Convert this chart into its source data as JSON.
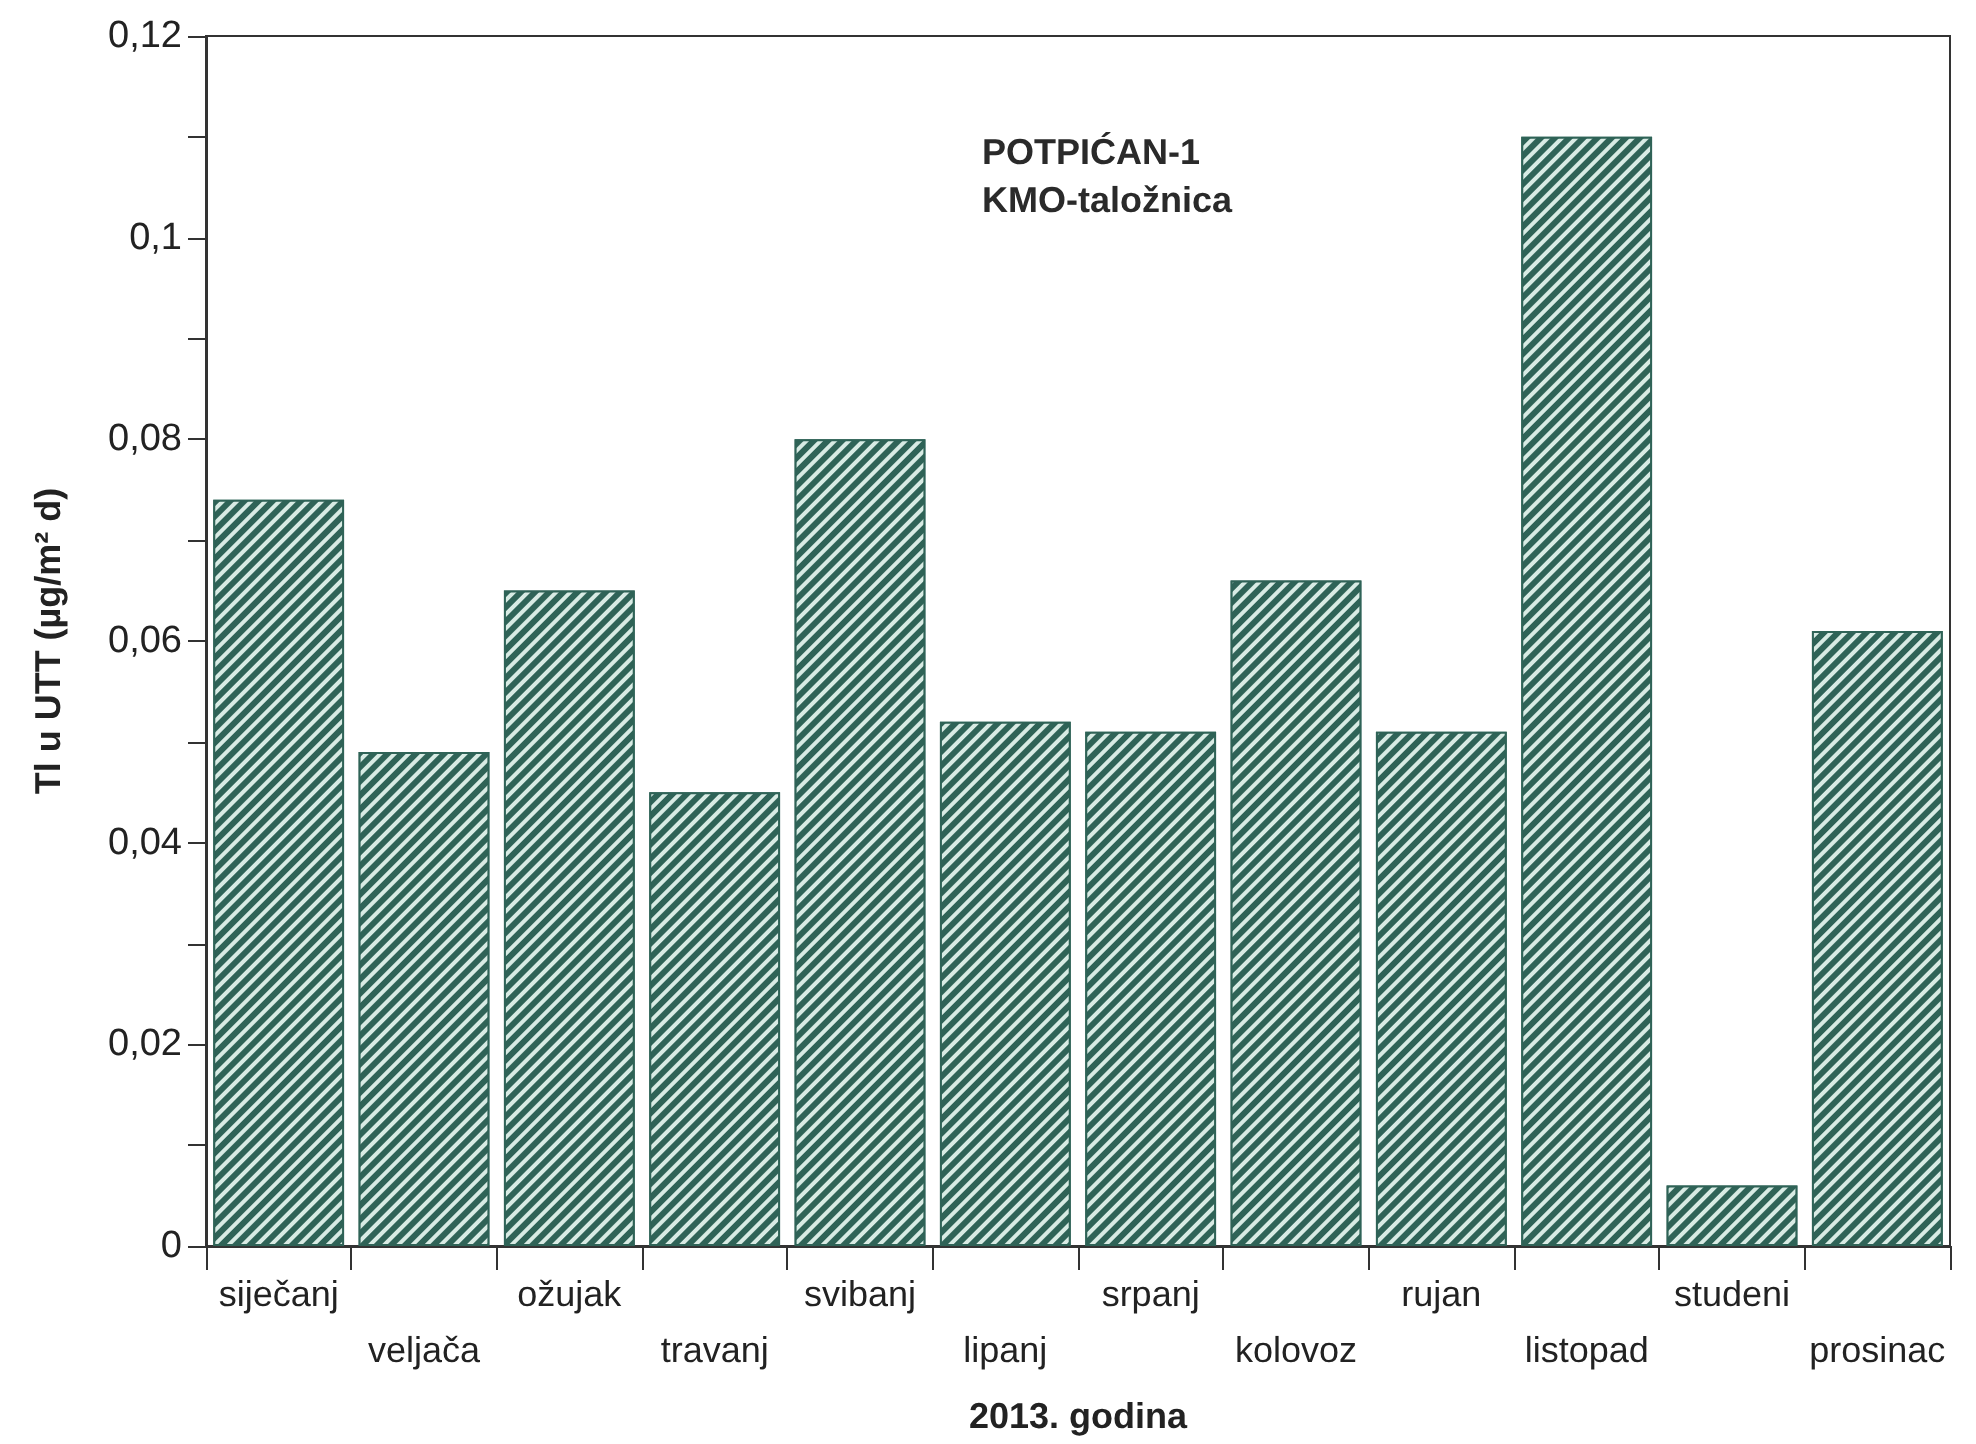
{
  "chart_data": {
    "type": "bar",
    "title": "POTPIĆAN-1",
    "subtitle": "KMO-taložnica",
    "xlabel": "2013. godina",
    "ylabel": "Tl u UTT (µg/m² d)",
    "categories": [
      "siječanj",
      "veljača",
      "ožujak",
      "travanj",
      "svibanj",
      "lipanj",
      "srpanj",
      "kolovoz",
      "rujan",
      "listopad",
      "studeni",
      "prosinac"
    ],
    "values": [
      0.074,
      0.049,
      0.065,
      0.045,
      0.08,
      0.052,
      0.051,
      0.066,
      0.051,
      0.11,
      0.006,
      0.061
    ],
    "color": "#2f6357",
    "ylim": [
      0,
      0.12
    ],
    "yticks": [
      0,
      {
        "value": 0.01,
        "label": null
      },
      {
        "value": 0.02,
        "label": "0,02"
      },
      {
        "value": 0.03,
        "label": null
      },
      {
        "value": 0.04,
        "label": "0,04"
      },
      {
        "value": 0.05,
        "label": null
      },
      {
        "value": 0.06,
        "label": "0,06"
      },
      {
        "value": 0.07,
        "label": null
      },
      {
        "value": 0.08,
        "label": "0,08"
      },
      {
        "value": 0.09,
        "label": null
      },
      {
        "value": 0.1,
        "label": "0,1"
      },
      {
        "value": 0.11,
        "label": null
      },
      {
        "value": 0.12,
        "label": "0,12"
      }
    ]
  }
}
